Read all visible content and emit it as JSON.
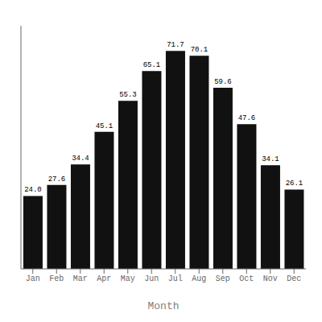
{
  "chart_data": {
    "type": "bar",
    "xlabel": "Month",
    "categories": [
      "Jan",
      "Feb",
      "Mar",
      "Apr",
      "May",
      "Jun",
      "Jul",
      "Aug",
      "Sep",
      "Oct",
      "Nov",
      "Dec"
    ],
    "values": [
      24.0,
      27.6,
      34.4,
      45.1,
      55.3,
      65.1,
      71.7,
      70.1,
      59.6,
      47.6,
      34.1,
      26.1
    ],
    "value_labels": [
      "24.0",
      "27.6",
      "34.4",
      "45.1",
      "55.3",
      "65.1",
      "71.7",
      "70.1",
      "59.6",
      "47.6",
      "34.1",
      "26.1"
    ],
    "data_labels": true,
    "color": "#111111",
    "ylim": [
      0,
      80
    ],
    "tick_labels": "x",
    "grid": false
  }
}
